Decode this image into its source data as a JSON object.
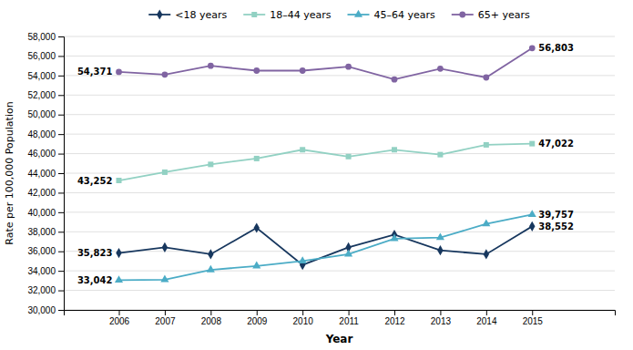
{
  "chart_data": {
    "type": "line",
    "x": [
      2006,
      2007,
      2008,
      2009,
      2010,
      2011,
      2012,
      2013,
      2014,
      2015
    ],
    "xlabel": "Year",
    "ylabel": "Rate per 100,000 Population",
    "xlim": [
      2004.8,
      2016.8
    ],
    "xticks": [
      2006,
      2007,
      2008,
      2009,
      2010,
      2011,
      2012,
      2013,
      2014,
      2015
    ],
    "ylim": [
      30000,
      58000
    ],
    "yticks": [
      {
        "value": 30000,
        "label": "30,000"
      },
      {
        "value": 32000,
        "label": "32,000"
      },
      {
        "value": 34000,
        "label": "34,000"
      },
      {
        "value": 36000,
        "label": "36,000"
      },
      {
        "value": 38000,
        "label": "38,000"
      },
      {
        "value": 40000,
        "label": "40,000"
      },
      {
        "value": 42000,
        "label": "42,000"
      },
      {
        "value": 44000,
        "label": "44,000"
      },
      {
        "value": 46000,
        "label": "46,000"
      },
      {
        "value": 48000,
        "label": "48,000"
      },
      {
        "value": 50000,
        "label": "50,000"
      },
      {
        "value": 52000,
        "label": "52,000"
      },
      {
        "value": 54000,
        "label": "54,000"
      },
      {
        "value": 56000,
        "label": "56,000"
      },
      {
        "value": 58000,
        "label": "58,000"
      }
    ],
    "grid": true,
    "legend": "top",
    "data_labels": true,
    "series": [
      {
        "name": "<18 years",
        "color": "#17375E",
        "marker": "diamond",
        "values": [
          35823,
          36400,
          35700,
          38400,
          34600,
          36400,
          37700,
          36100,
          35700,
          38552
        ],
        "value_labels": [
          "35,823",
          null,
          null,
          null,
          null,
          null,
          null,
          null,
          null,
          "38,552"
        ]
      },
      {
        "name": "18–44 years",
        "color": "#92D1C3",
        "marker": "square",
        "values": [
          43252,
          44100,
          44900,
          45500,
          46400,
          45700,
          46400,
          45900,
          46900,
          47022
        ],
        "value_labels": [
          "43,252",
          null,
          null,
          null,
          null,
          null,
          null,
          null,
          null,
          "47,022"
        ]
      },
      {
        "name": "45–64 years",
        "color": "#4BACC6",
        "marker": "triangle",
        "values": [
          33042,
          33100,
          34100,
          34500,
          35000,
          35700,
          37300,
          37400,
          38800,
          39757
        ],
        "value_labels": [
          "33,042",
          null,
          null,
          null,
          null,
          null,
          null,
          null,
          null,
          "39,757"
        ]
      },
      {
        "name": "65+ years",
        "color": "#8064A2",
        "marker": "circle",
        "values": [
          54371,
          54100,
          55000,
          54500,
          54500,
          54900,
          53600,
          54700,
          53800,
          56803
        ],
        "value_labels": [
          "54,371",
          null,
          null,
          null,
          null,
          null,
          null,
          null,
          null,
          "56,803"
        ]
      }
    ]
  }
}
